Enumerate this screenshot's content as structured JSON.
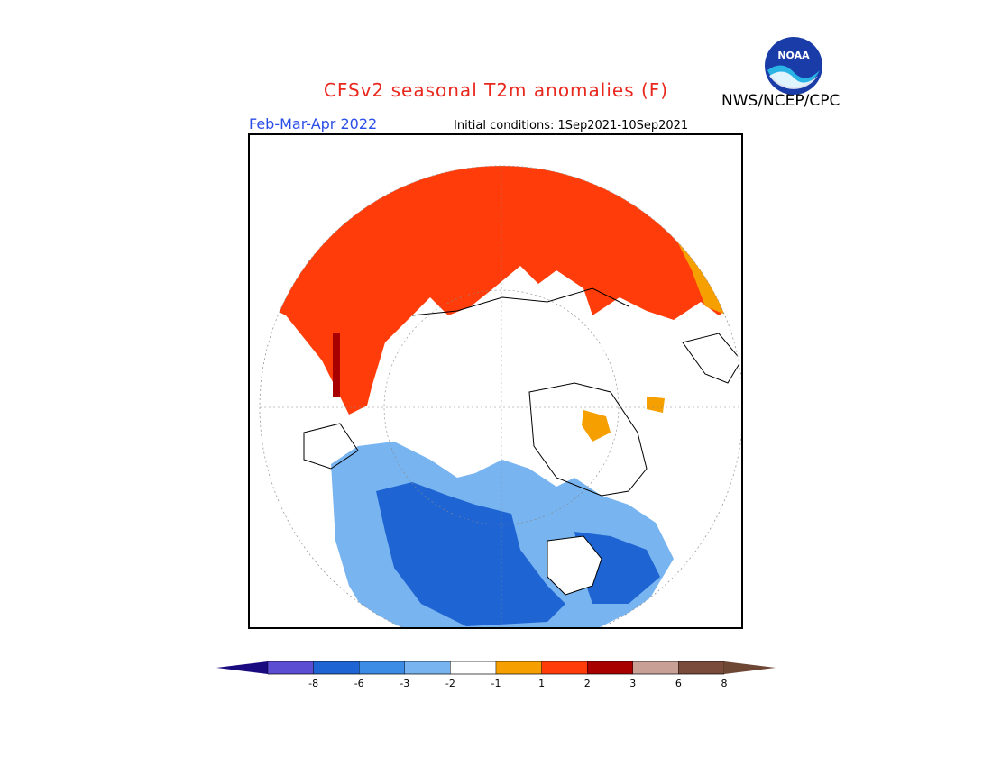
{
  "header": {
    "title": "CFSv2 seasonal T2m anomalies (F)",
    "agency": "NWS/NCEP/CPC",
    "period": "Feb-Mar-Apr 2022",
    "initial_conditions": "Initial conditions: 1Sep2021-10Sep2021",
    "logo_text": "NOAA"
  },
  "colorbar": {
    "labels": [
      "-8",
      "-6",
      "-3",
      "-2",
      "-1",
      "1",
      "2",
      "3",
      "6",
      "8"
    ],
    "colors": [
      "#3a1aa8",
      "#5b4ed2",
      "#1e64d2",
      "#3c8ce6",
      "#78b4f0",
      "#ffffff",
      "#f5a000",
      "#ff3c0a",
      "#a80000",
      "#c8a096",
      "#7a4a3a"
    ],
    "under_color": "#1a0a80",
    "over_color": "#6e4634"
  },
  "map": {
    "projection": "north-polar-stereographic",
    "warm_color": "#ff3c0a",
    "mild_warm_color": "#f5a000",
    "cool_color": "#78b4f0",
    "cold_color": "#1e64d2"
  }
}
